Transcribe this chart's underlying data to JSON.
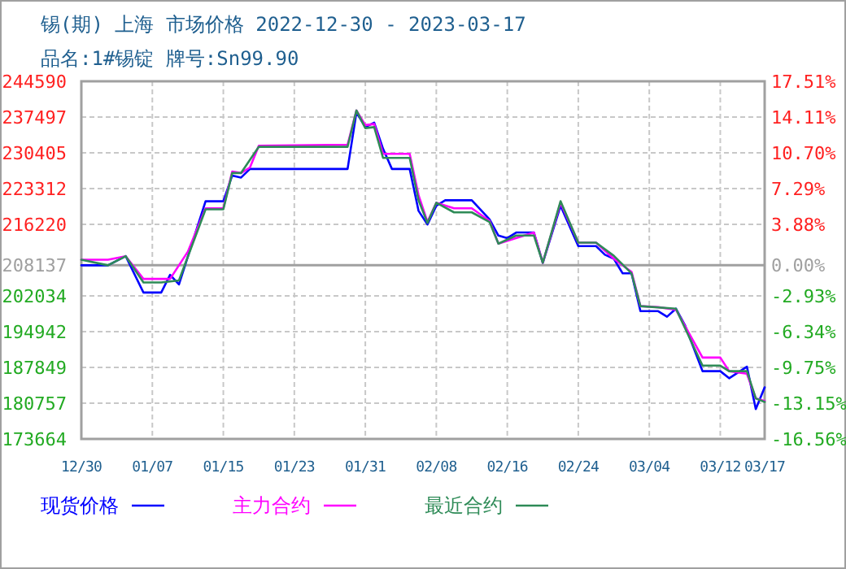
{
  "chart_data": {
    "type": "line",
    "title": "锡(期) 上海 市场价格 2022-12-30 - 2023-03-17",
    "subtitle": "品名:1#锡锭 牌号:Sn99.90",
    "xlim": [
      "2022-12-30",
      "2023-03-17"
    ],
    "xticks": [
      {
        "value": "2022-12-30",
        "label": "12/30"
      },
      {
        "value": "2023-01-07",
        "label": "01/07"
      },
      {
        "value": "2023-01-15",
        "label": "01/15"
      },
      {
        "value": "2023-01-23",
        "label": "01/23"
      },
      {
        "value": "2023-01-31",
        "label": "01/31"
      },
      {
        "value": "2023-02-08",
        "label": "02/08"
      },
      {
        "value": "2023-02-16",
        "label": "02/16"
      },
      {
        "value": "2023-02-24",
        "label": "02/24"
      },
      {
        "value": "2023-03-04",
        "label": "03/04"
      },
      {
        "value": "2023-03-12",
        "label": "03/12"
      },
      {
        "value": "2023-03-17",
        "label": "03/17"
      }
    ],
    "ylim": [
      173664,
      244590
    ],
    "yticks": [
      244590,
      237497,
      230405,
      223312,
      216220,
      208137,
      202034,
      194942,
      187849,
      180757,
      173664
    ],
    "y2lim": [
      -16.56,
      17.51
    ],
    "y2ticks": [
      {
        "value": 17.51,
        "label": "17.51%"
      },
      {
        "value": 14.11,
        "label": "14.11%"
      },
      {
        "value": 10.7,
        "label": "10.70%"
      },
      {
        "value": 7.29,
        "label": "7.29%"
      },
      {
        "value": 3.88,
        "label": "3.88%"
      },
      {
        "value": 0,
        "label": "0.00%"
      },
      {
        "value": -2.93,
        "label": "-2.93%"
      },
      {
        "value": -6.34,
        "label": "-6.34%"
      },
      {
        "value": -9.75,
        "label": "-9.75%"
      },
      {
        "value": -13.15,
        "label": "-13.15%"
      },
      {
        "value": -16.56,
        "label": "-16.56%"
      }
    ],
    "ref_lines": [
      {
        "axis": "y",
        "value": 208137,
        "color": "#a0a0a0"
      }
    ],
    "grid": true,
    "legend": "bottom",
    "line_style": "solid",
    "series": [
      {
        "name": "现货价格",
        "color": "#0000ff",
        "x": [
          "2022-12-30",
          "2023-01-02",
          "2023-01-04",
          "2023-01-06",
          "2023-01-08",
          "2023-01-09",
          "2023-01-10",
          "2023-01-13",
          "2023-01-15",
          "2023-01-16",
          "2023-01-17",
          "2023-01-18",
          "2023-01-29",
          "2023-01-30",
          "2023-01-31",
          "2023-02-01",
          "2023-02-02",
          "2023-02-03",
          "2023-02-05",
          "2023-02-06",
          "2023-02-07",
          "2023-02-08",
          "2023-02-09",
          "2023-02-12",
          "2023-02-14",
          "2023-02-15",
          "2023-02-16",
          "2023-02-17",
          "2023-02-19",
          "2023-02-20",
          "2023-02-22",
          "2023-02-24",
          "2023-02-26",
          "2023-02-27",
          "2023-02-28",
          "2023-03-01",
          "2023-03-02",
          "2023-03-03",
          "2023-03-05",
          "2023-03-06",
          "2023-03-07",
          "2023-03-08",
          "2023-03-10",
          "2023-03-12",
          "2023-03-13",
          "2023-03-15",
          "2023-03-16",
          "2023-03-17"
        ],
        "values": [
          208100,
          208100,
          209900,
          202700,
          202700,
          206200,
          204300,
          220800,
          220800,
          225900,
          225500,
          227200,
          227200,
          238400,
          235500,
          236400,
          231200,
          227200,
          227200,
          218900,
          216200,
          219900,
          221000,
          221000,
          217200,
          214000,
          213500,
          214600,
          214600,
          208600,
          219900,
          211900,
          211900,
          210200,
          209400,
          206500,
          206500,
          199000,
          199000,
          197900,
          199500,
          196300,
          187100,
          187100,
          185700,
          188000,
          179600,
          183900
        ]
      },
      {
        "name": "主力合约",
        "color": "#ff00ff",
        "x": [
          "2022-12-30",
          "2023-01-02",
          "2023-01-04",
          "2023-01-06",
          "2023-01-09",
          "2023-01-11",
          "2023-01-13",
          "2023-01-15",
          "2023-01-16",
          "2023-01-17",
          "2023-01-18",
          "2023-01-19",
          "2023-01-29",
          "2023-01-30",
          "2023-01-31",
          "2023-02-01",
          "2023-02-02",
          "2023-02-05",
          "2023-02-06",
          "2023-02-07",
          "2023-02-08",
          "2023-02-10",
          "2023-02-12",
          "2023-02-14",
          "2023-02-15",
          "2023-02-19",
          "2023-02-20",
          "2023-02-22",
          "2023-02-24",
          "2023-02-26",
          "2023-02-28",
          "2023-03-02",
          "2023-03-03",
          "2023-03-05",
          "2023-03-07",
          "2023-03-10",
          "2023-03-12",
          "2023-03-13",
          "2023-03-15",
          "2023-03-16",
          "2023-03-17"
        ],
        "values": [
          209200,
          209200,
          209900,
          205400,
          205400,
          210800,
          219400,
          219400,
          226700,
          226400,
          227500,
          231800,
          232000,
          238800,
          235900,
          236100,
          230200,
          230200,
          222000,
          216700,
          220500,
          219400,
          219400,
          216900,
          212400,
          214600,
          208600,
          220500,
          212600,
          212600,
          209400,
          206800,
          200000,
          199800,
          199300,
          189800,
          189800,
          187100,
          186600,
          181700,
          181200
        ]
      },
      {
        "name": "最近合约",
        "color": "#2e8b57",
        "x": [
          "2022-12-30",
          "2023-01-02",
          "2023-01-04",
          "2023-01-06",
          "2023-01-08",
          "2023-01-10",
          "2023-01-13",
          "2023-01-15",
          "2023-01-16",
          "2023-01-17",
          "2023-01-19",
          "2023-01-29",
          "2023-01-30",
          "2023-01-31",
          "2023-02-01",
          "2023-02-02",
          "2023-02-05",
          "2023-02-06",
          "2023-02-07",
          "2023-02-08",
          "2023-02-10",
          "2023-02-12",
          "2023-02-14",
          "2023-02-15",
          "2023-02-17",
          "2023-02-19",
          "2023-02-20",
          "2023-02-22",
          "2023-02-24",
          "2023-02-26",
          "2023-02-28",
          "2023-03-02",
          "2023-03-03",
          "2023-03-07",
          "2023-03-10",
          "2023-03-12",
          "2023-03-13",
          "2023-03-15",
          "2023-03-16",
          "2023-03-17"
        ],
        "values": [
          209200,
          208100,
          209900,
          204700,
          204700,
          205100,
          219200,
          219200,
          226400,
          226400,
          231600,
          231600,
          238800,
          235300,
          235500,
          229400,
          229400,
          221000,
          216500,
          220500,
          218600,
          218600,
          216700,
          212400,
          214000,
          214000,
          208600,
          220800,
          212600,
          212600,
          210000,
          206500,
          200000,
          199500,
          188200,
          188200,
          187100,
          187100,
          181700,
          181000
        ]
      }
    ]
  }
}
